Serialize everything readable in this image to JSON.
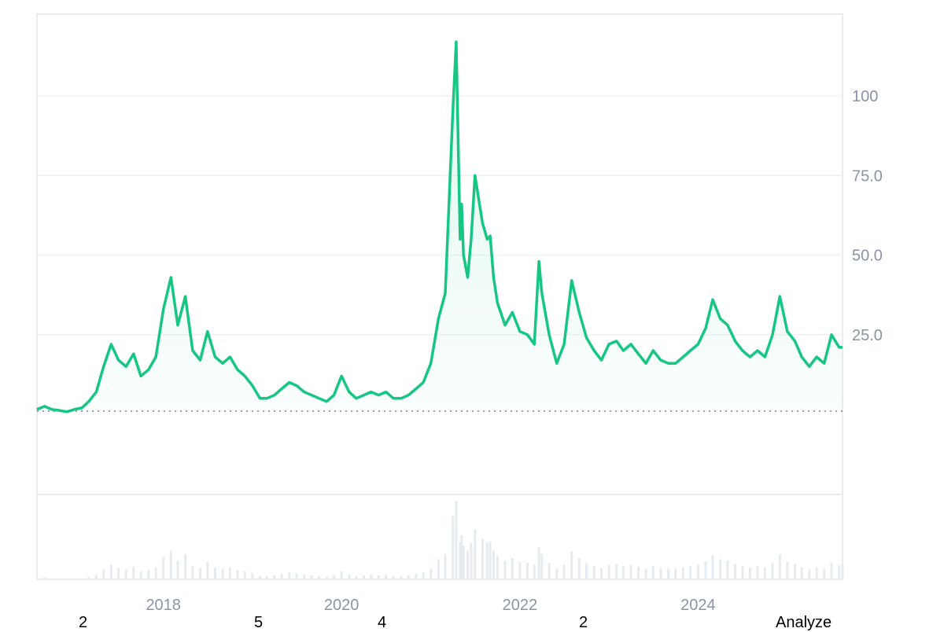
{
  "chart_data": {
    "type": "area",
    "y_ticks": [
      "25.0",
      "50.0",
      "75.0",
      "100"
    ],
    "y_tick_values": [
      25,
      50,
      75,
      100
    ],
    "x_ticks": [
      "2018",
      "2020",
      "2022",
      "2024"
    ],
    "x_tick_values": [
      "2018-01-01",
      "2020-01-01",
      "2022-01-01",
      "2024-01-01"
    ],
    "x_range": [
      "2016-08-01",
      "2025-08-15"
    ],
    "y_range": [
      -25,
      125
    ],
    "baseline": 1,
    "grid": true,
    "line_color": "#16c784",
    "below_baseline_color": "#ea3943",
    "series": [
      {
        "x": [
          "2016-08-01",
          "2016-09-01",
          "2016-10-01",
          "2016-11-01",
          "2016-12-01",
          "2017-01-01",
          "2017-02-01",
          "2017-03-01",
          "2017-04-01",
          "2017-05-01",
          "2017-06-01",
          "2017-07-01",
          "2017-08-01",
          "2017-09-01",
          "2017-10-01",
          "2017-11-01",
          "2017-12-01",
          "2018-01-01",
          "2018-02-01",
          "2018-03-01",
          "2018-04-01",
          "2018-05-01",
          "2018-06-01",
          "2018-07-01",
          "2018-08-01",
          "2018-09-01",
          "2018-10-01",
          "2018-11-01",
          "2018-12-01",
          "2019-01-01",
          "2019-02-01",
          "2019-03-01",
          "2019-04-01",
          "2019-05-01",
          "2019-06-01",
          "2019-07-01",
          "2019-08-01",
          "2019-09-01",
          "2019-10-01",
          "2019-11-01",
          "2019-12-01",
          "2020-01-01",
          "2020-02-01",
          "2020-03-01",
          "2020-04-01",
          "2020-05-01",
          "2020-06-01",
          "2020-07-01",
          "2020-08-01",
          "2020-09-01",
          "2020-10-01",
          "2020-11-01",
          "2020-12-01",
          "2021-01-01",
          "2021-02-01",
          "2021-03-01",
          "2021-04-01",
          "2021-04-15",
          "2021-05-01",
          "2021-05-07",
          "2021-05-15",
          "2021-06-01",
          "2021-06-15",
          "2021-07-01",
          "2021-08-01",
          "2021-08-20",
          "2021-09-01",
          "2021-09-15",
          "2021-10-01",
          "2021-11-01",
          "2021-12-01",
          "2022-01-01",
          "2022-02-01",
          "2022-03-01",
          "2022-03-20",
          "2022-04-01",
          "2022-05-01",
          "2022-06-01",
          "2022-07-01",
          "2022-08-01",
          "2022-09-01",
          "2022-10-01",
          "2022-11-01",
          "2022-12-01",
          "2023-01-01",
          "2023-02-01",
          "2023-03-01",
          "2023-04-01",
          "2023-05-01",
          "2023-06-01",
          "2023-07-01",
          "2023-08-01",
          "2023-09-01",
          "2023-10-01",
          "2023-11-01",
          "2023-12-01",
          "2024-01-01",
          "2024-02-01",
          "2024-03-01",
          "2024-04-01",
          "2024-05-01",
          "2024-06-01",
          "2024-07-01",
          "2024-08-01",
          "2024-09-01",
          "2024-10-01",
          "2024-11-01",
          "2024-12-01",
          "2025-01-01",
          "2025-02-01",
          "2025-03-01",
          "2025-04-01",
          "2025-05-01",
          "2025-06-01",
          "2025-07-01",
          "2025-08-01",
          "2025-08-15"
        ],
        "y": [
          1.5,
          2.5,
          1.5,
          1.2,
          0.8,
          1.5,
          2,
          4,
          7,
          15,
          22,
          17,
          15,
          19,
          12,
          14,
          18,
          33,
          43,
          28,
          37,
          20,
          17,
          26,
          18,
          16,
          18,
          14,
          12,
          9,
          5,
          5,
          6,
          8,
          10,
          9,
          7,
          6,
          5,
          4,
          6,
          12,
          7,
          5,
          6,
          7,
          6,
          7,
          5,
          5,
          6,
          8,
          10,
          16,
          30,
          38,
          95,
          117,
          55,
          66,
          50,
          43,
          55,
          75,
          60,
          55,
          56,
          43,
          35,
          28,
          32,
          26,
          25,
          22,
          48,
          38,
          25,
          16,
          22,
          42,
          32,
          24,
          20,
          17,
          22,
          23,
          20,
          22,
          19,
          16,
          20,
          17,
          16,
          16,
          18,
          20,
          22,
          27,
          36,
          30,
          28,
          23,
          20,
          18,
          20,
          18,
          25,
          37,
          26,
          23,
          18,
          15,
          18,
          16,
          25,
          21,
          21
        ]
      }
    ]
  },
  "footer": {
    "label_1": "2",
    "label_2": "5",
    "label_3": "4",
    "label_4": "2",
    "label_5": "Analyze"
  }
}
